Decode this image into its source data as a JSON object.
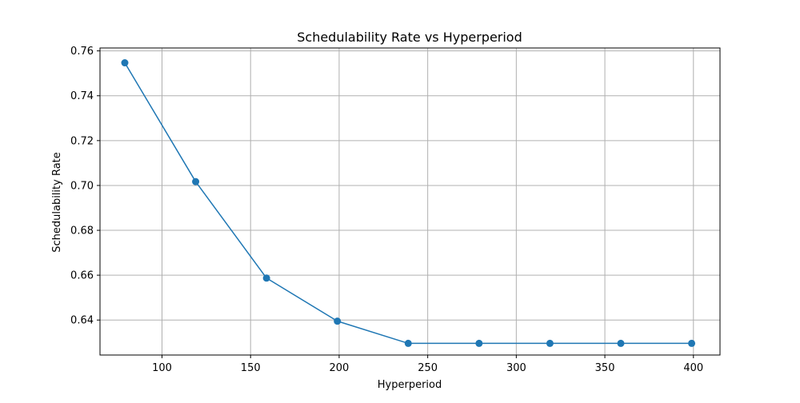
{
  "chart_data": {
    "type": "line",
    "title": "Schedulability Rate vs Hyperperiod",
    "xlabel": "Hyperperiod",
    "ylabel": "Schedulability Rate",
    "xlim": [
      65,
      415
    ],
    "ylim": [
      0.6244,
      0.7613
    ],
    "xticks": [
      100,
      150,
      200,
      250,
      300,
      350,
      400
    ],
    "yticks": [
      0.64,
      0.66,
      0.68,
      0.7,
      0.72,
      0.74,
      0.76
    ],
    "xtick_labels": [
      "100",
      "150",
      "200",
      "250",
      "300",
      "350",
      "400"
    ],
    "ytick_labels": [
      "0.64",
      "0.66",
      "0.68",
      "0.70",
      "0.72",
      "0.74",
      "0.76"
    ],
    "grid": true,
    "marker": "circle",
    "series": [
      {
        "color": "#1f77b4",
        "x": [
          79,
          119,
          159,
          199,
          239,
          279,
          319,
          359,
          399
        ],
        "y": [
          0.7547,
          0.7017,
          0.6587,
          0.6395,
          0.6296,
          0.6296,
          0.6296,
          0.6296,
          0.6296
        ]
      }
    ]
  }
}
